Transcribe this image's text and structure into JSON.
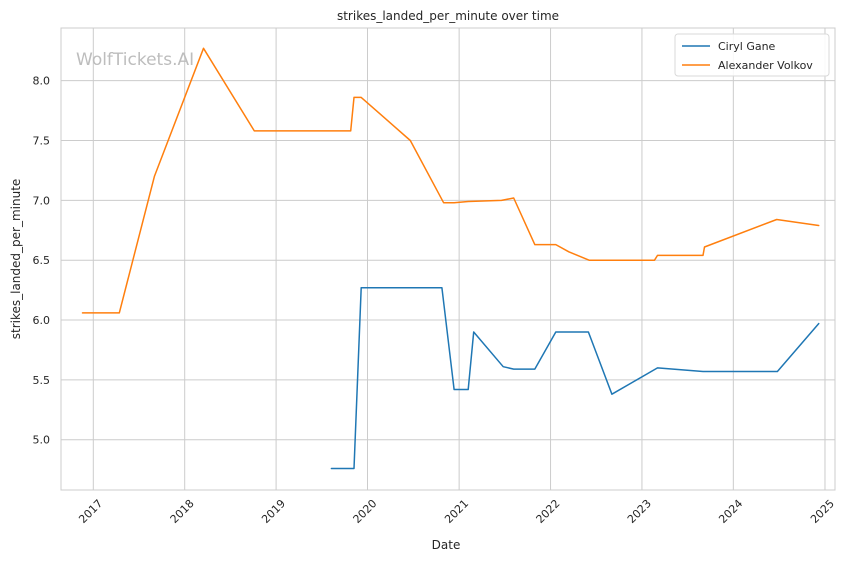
{
  "chart_data": {
    "type": "line",
    "title": "strikes_landed_per_minute over time",
    "xlabel": "Date",
    "ylabel": "strikes_landed_per_minute",
    "watermark": "WolfTickets.AI",
    "x_ticks": [
      "2017",
      "2018",
      "2019",
      "2020",
      "2021",
      "2022",
      "2023",
      "2024",
      "2025"
    ],
    "y_ticks": [
      "5.0",
      "5.5",
      "6.0",
      "6.5",
      "7.0",
      "7.5",
      "8.0"
    ],
    "xlim": [
      "2016-08-25",
      "2025-02-10"
    ],
    "ylim": [
      4.58,
      8.44
    ],
    "grid": true,
    "legend_position": "top-right",
    "series": [
      {
        "name": "Ciryl Gane",
        "color": "#1f77b4",
        "points": [
          [
            "2019-08-10",
            4.76
          ],
          [
            "2019-11-08",
            4.76
          ],
          [
            "2019-12-07",
            6.27
          ],
          [
            "2020-10-24",
            6.27
          ],
          [
            "2020-12-12",
            5.42
          ],
          [
            "2021-02-06",
            5.42
          ],
          [
            "2021-02-28",
            5.9
          ],
          [
            "2021-06-26",
            5.61
          ],
          [
            "2021-08-07",
            5.59
          ],
          [
            "2021-10-30",
            5.59
          ],
          [
            "2022-01-22",
            5.9
          ],
          [
            "2022-06-01",
            5.9
          ],
          [
            "2022-09-03",
            5.38
          ],
          [
            "2023-03-04",
            5.6
          ],
          [
            "2023-09-02",
            5.57
          ],
          [
            "2024-06-25",
            5.57
          ],
          [
            "2024-12-07",
            5.97
          ]
        ]
      },
      {
        "name": "Alexander Volkov",
        "color": "#ff7f0e",
        "points": [
          [
            "2016-11-19",
            6.06
          ],
          [
            "2017-04-15",
            6.06
          ],
          [
            "2017-09-02",
            7.2
          ],
          [
            "2018-03-17",
            8.27
          ],
          [
            "2018-10-06",
            7.58
          ],
          [
            "2019-10-26",
            7.58
          ],
          [
            "2019-11-08",
            7.86
          ],
          [
            "2019-12-07",
            7.86
          ],
          [
            "2020-06-20",
            7.5
          ],
          [
            "2020-10-31",
            6.98
          ],
          [
            "2020-12-12",
            6.98
          ],
          [
            "2021-02-06",
            6.99
          ],
          [
            "2021-06-19",
            7.0
          ],
          [
            "2021-08-07",
            7.02
          ],
          [
            "2021-10-30",
            6.63
          ],
          [
            "2022-01-22",
            6.63
          ],
          [
            "2022-03-15",
            6.57
          ],
          [
            "2022-06-04",
            6.5
          ],
          [
            "2023-02-20",
            6.5
          ],
          [
            "2023-03-04",
            6.54
          ],
          [
            "2023-09-02",
            6.54
          ],
          [
            "2023-09-08",
            6.61
          ],
          [
            "2024-06-22",
            6.84
          ],
          [
            "2024-12-07",
            6.79
          ]
        ]
      }
    ]
  }
}
